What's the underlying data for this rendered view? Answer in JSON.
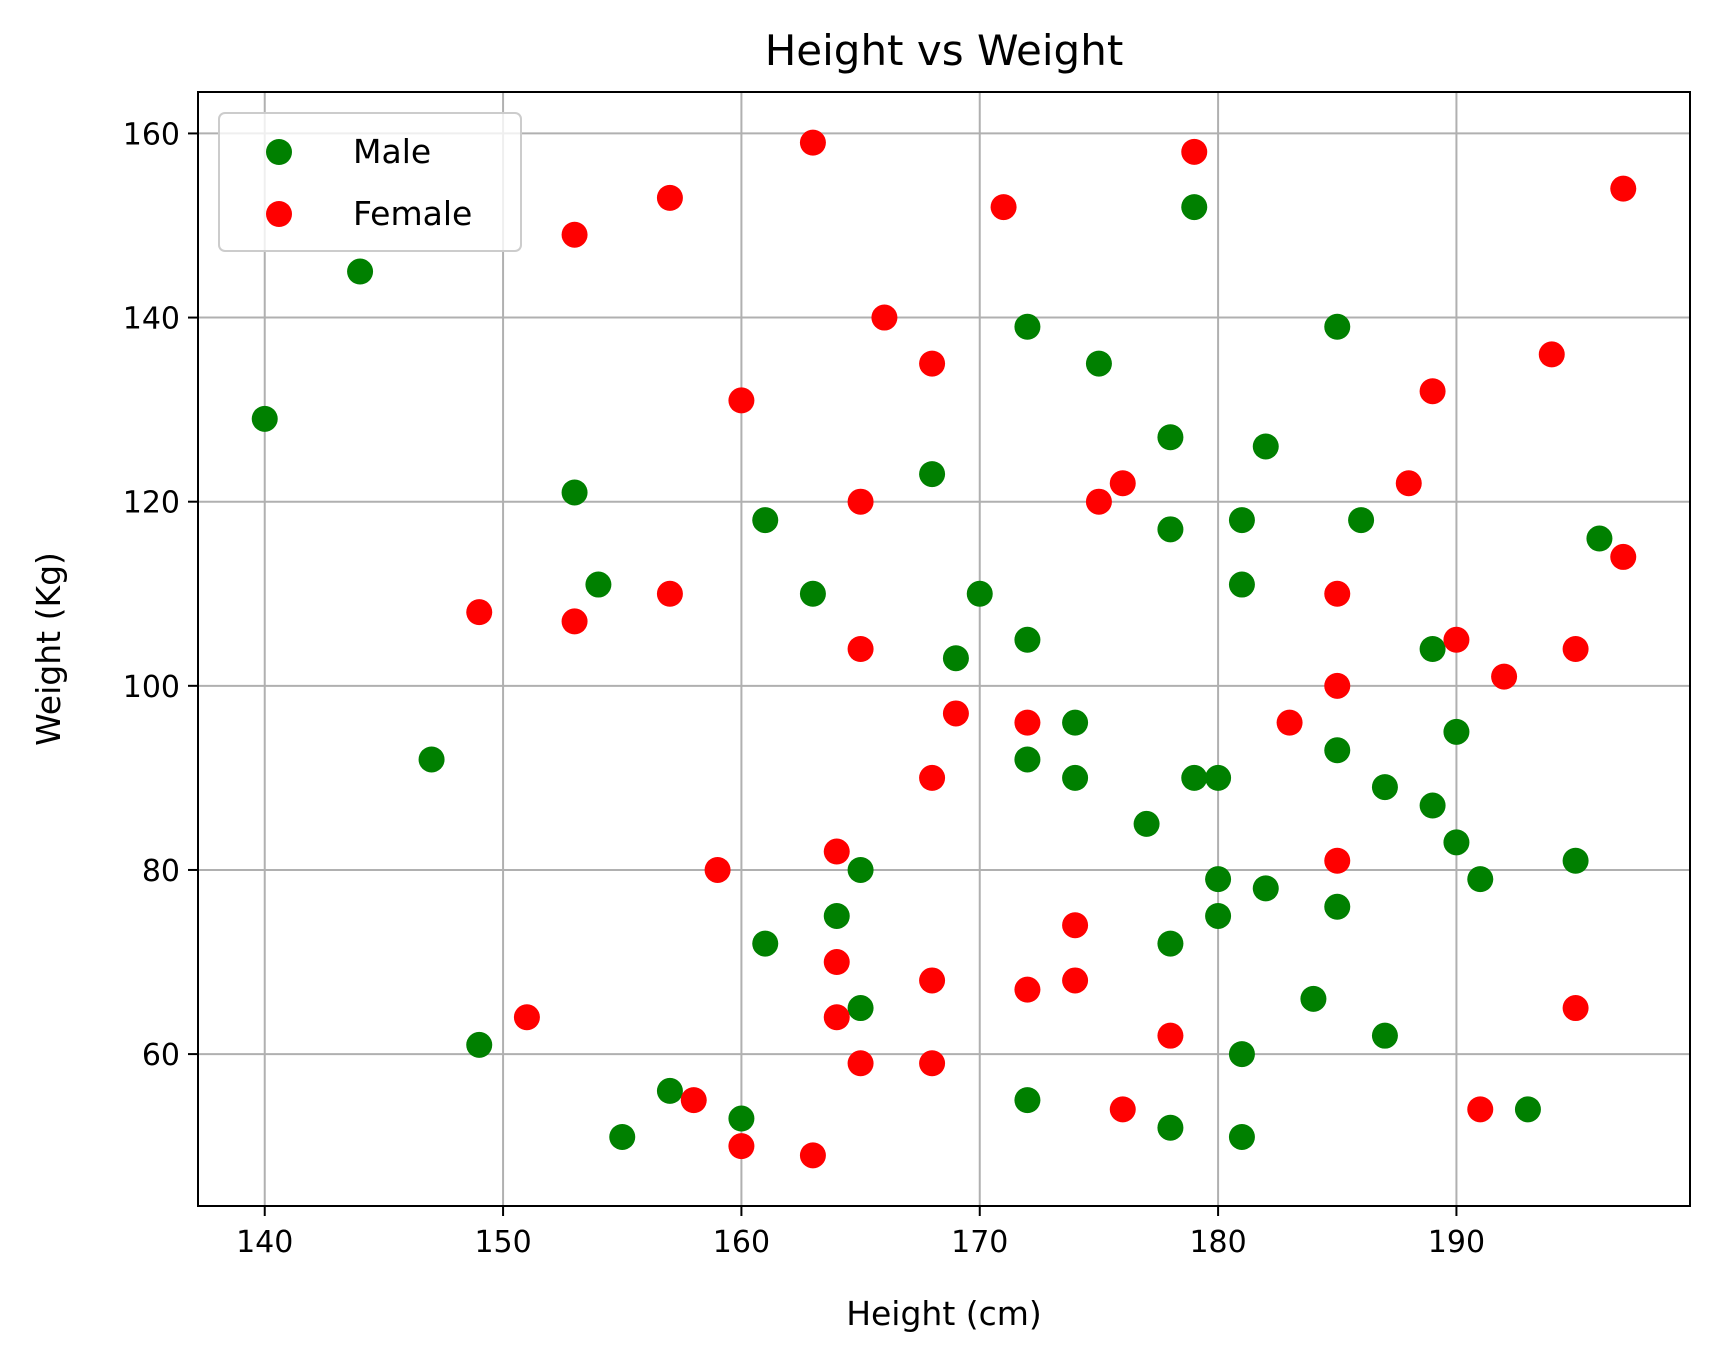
{
  "chart_data": {
    "type": "scatter",
    "title": "Height vs Weight",
    "xlabel": "Height (cm)",
    "ylabel": "Weight (Kg)",
    "xlim": [
      137.2,
      199.8
    ],
    "ylim": [
      43.5,
      164.5
    ],
    "xticks": [
      140,
      150,
      160,
      170,
      180,
      190
    ],
    "yticks": [
      60,
      80,
      100,
      120,
      140,
      160
    ],
    "grid": true,
    "legend_position": "upper-left",
    "series": [
      {
        "name": "Male",
        "color": "#008000",
        "points": [
          [
            140,
            129
          ],
          [
            144,
            145
          ],
          [
            147,
            92
          ],
          [
            149,
            61
          ],
          [
            153,
            121
          ],
          [
            154,
            111
          ],
          [
            155,
            51
          ],
          [
            157,
            56
          ],
          [
            160,
            53
          ],
          [
            161,
            118
          ],
          [
            161,
            72
          ],
          [
            163,
            110
          ],
          [
            164,
            75
          ],
          [
            165,
            80
          ],
          [
            165,
            65
          ],
          [
            168,
            123
          ],
          [
            169,
            103
          ],
          [
            170,
            110
          ],
          [
            172,
            139
          ],
          [
            172,
            105
          ],
          [
            172,
            92
          ],
          [
            172,
            55
          ],
          [
            174,
            96
          ],
          [
            174,
            90
          ],
          [
            175,
            135
          ],
          [
            177,
            85
          ],
          [
            178,
            127
          ],
          [
            178,
            117
          ],
          [
            178,
            72
          ],
          [
            178,
            52
          ],
          [
            179,
            152
          ],
          [
            179,
            90
          ],
          [
            180,
            90
          ],
          [
            180,
            79
          ],
          [
            180,
            75
          ],
          [
            181,
            118
          ],
          [
            181,
            111
          ],
          [
            181,
            60
          ],
          [
            181,
            51
          ],
          [
            182,
            126
          ],
          [
            182,
            78
          ],
          [
            184,
            66
          ],
          [
            185,
            139
          ],
          [
            185,
            93
          ],
          [
            185,
            76
          ],
          [
            186,
            118
          ],
          [
            187,
            89
          ],
          [
            187,
            62
          ],
          [
            189,
            104
          ],
          [
            189,
            87
          ],
          [
            190,
            95
          ],
          [
            190,
            83
          ],
          [
            191,
            79
          ],
          [
            193,
            54
          ],
          [
            195,
            81
          ],
          [
            196,
            116
          ]
        ]
      },
      {
        "name": "Female",
        "color": "#ff0000",
        "points": [
          [
            149,
            108
          ],
          [
            151,
            64
          ],
          [
            153,
            149
          ],
          [
            153,
            107
          ],
          [
            157,
            153
          ],
          [
            157,
            110
          ],
          [
            158,
            55
          ],
          [
            159,
            80
          ],
          [
            160,
            131
          ],
          [
            160,
            50
          ],
          [
            163,
            159
          ],
          [
            163,
            49
          ],
          [
            164,
            82
          ],
          [
            164,
            70
          ],
          [
            164,
            64
          ],
          [
            165,
            120
          ],
          [
            165,
            104
          ],
          [
            165,
            59
          ],
          [
            166,
            140
          ],
          [
            168,
            135
          ],
          [
            168,
            90
          ],
          [
            168,
            68
          ],
          [
            168,
            59
          ],
          [
            169,
            97
          ],
          [
            171,
            152
          ],
          [
            172,
            96
          ],
          [
            172,
            67
          ],
          [
            174,
            74
          ],
          [
            174,
            68
          ],
          [
            175,
            120
          ],
          [
            176,
            122
          ],
          [
            176,
            54
          ],
          [
            178,
            62
          ],
          [
            179,
            158
          ],
          [
            183,
            96
          ],
          [
            185,
            110
          ],
          [
            185,
            100
          ],
          [
            185,
            81
          ],
          [
            188,
            122
          ],
          [
            189,
            132
          ],
          [
            190,
            105
          ],
          [
            191,
            54
          ],
          [
            192,
            101
          ],
          [
            194,
            136
          ],
          [
            195,
            104
          ],
          [
            195,
            65
          ],
          [
            197,
            154
          ],
          [
            197,
            114
          ]
        ]
      }
    ]
  }
}
